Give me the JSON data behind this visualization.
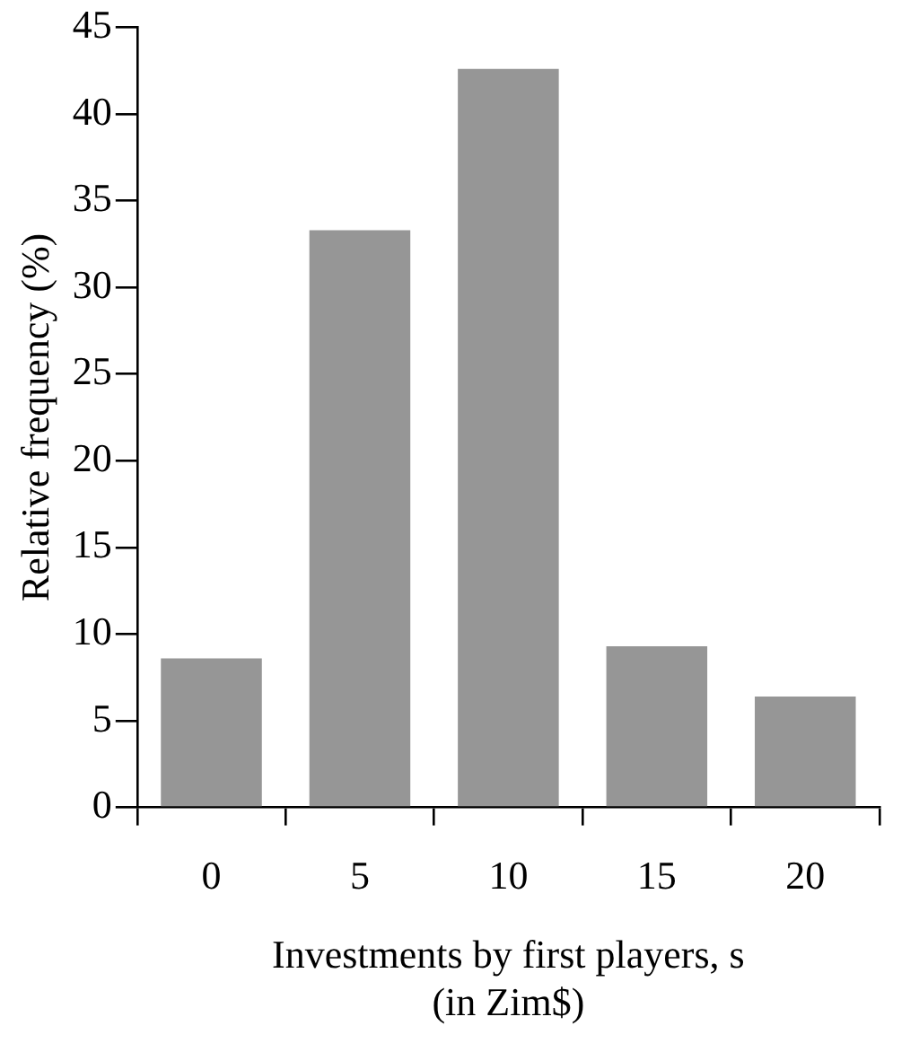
{
  "chart_data": {
    "type": "bar",
    "categories": [
      "0",
      "5",
      "10",
      "15",
      "20"
    ],
    "values": [
      8.6,
      33.3,
      42.6,
      9.3,
      6.4
    ],
    "color": "#969696",
    "xlabel": "Investments by first players, s\n(in Zim$)",
    "ylabel": "Relative frequency (%)",
    "ylim": [
      0,
      45
    ],
    "yticks": [
      0,
      5,
      10,
      15,
      20,
      25,
      30,
      35,
      40,
      45
    ],
    "grid": false,
    "legend": false
  }
}
